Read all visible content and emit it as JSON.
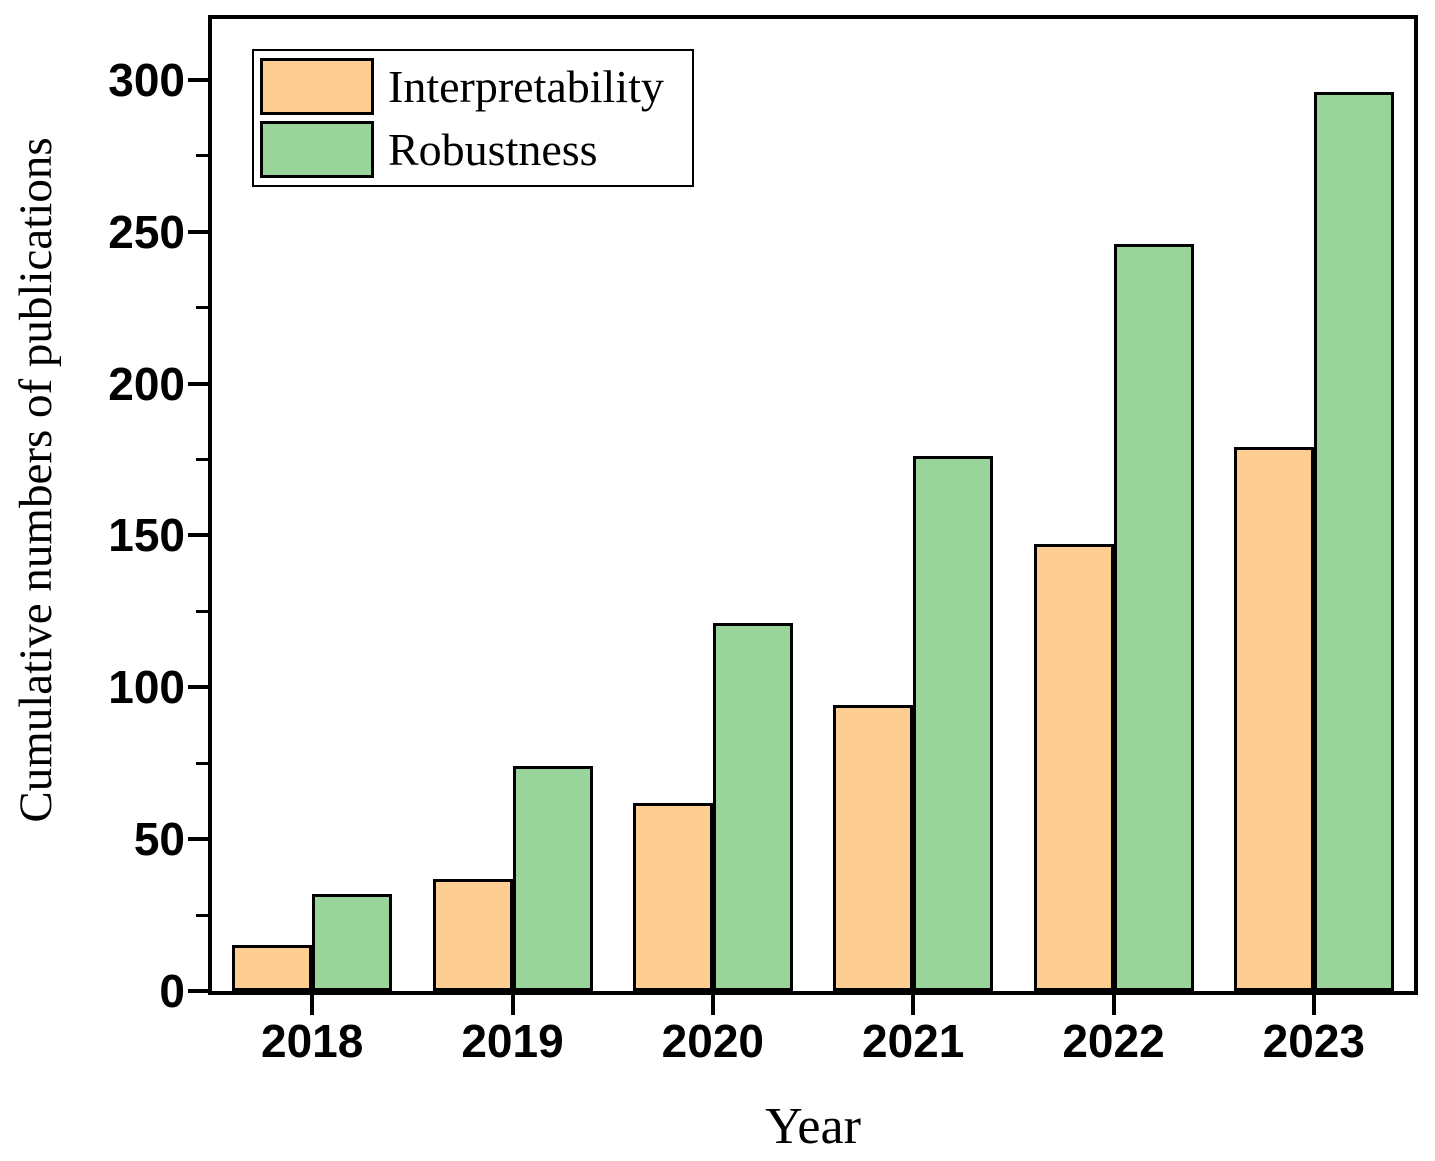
{
  "chart_data": {
    "type": "bar",
    "title": "",
    "xlabel": "Year",
    "ylabel": "Cumulative numbers of publications",
    "categories": [
      "2018",
      "2019",
      "2020",
      "2021",
      "2022",
      "2023"
    ],
    "series": [
      {
        "name": "Interpretability",
        "color": "#FDCD92",
        "values": [
          15,
          37,
          62,
          94,
          147,
          179
        ]
      },
      {
        "name": "Robustness",
        "color": "#99D49B",
        "values": [
          32,
          74,
          121,
          176,
          246,
          296
        ]
      }
    ],
    "ylim": [
      0,
      320
    ],
    "yticks": [
      0,
      50,
      100,
      150,
      200,
      250,
      300
    ],
    "minor_yticks": [
      25,
      75,
      125,
      175,
      225,
      275
    ],
    "legend_position": "top-left",
    "grid": false,
    "axis_color": "#000000",
    "bar_border_color": "#000000",
    "background": "#FFFFFF"
  }
}
